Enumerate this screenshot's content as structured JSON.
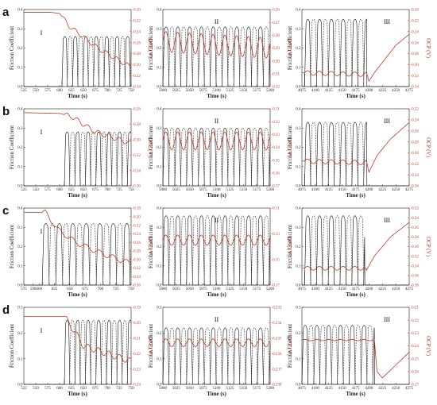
{
  "figure": {
    "rows": [
      "a",
      "b",
      "c",
      "d"
    ],
    "stage_labels": [
      "I",
      "II",
      "III"
    ],
    "left_axis_label": "Friction Coefficient",
    "right_axis_label": "OCP (V)",
    "x_axis_label": "Time (s)"
  },
  "chart_data": [
    {
      "row": "a",
      "stage": "I",
      "type": "line",
      "x_ticks": [
        "525",
        "550",
        "575",
        "600",
        "625",
        "650",
        "675",
        "700",
        "725",
        "750"
      ],
      "xlim": [
        525,
        750
      ],
      "y_ticks": [
        "0.0",
        "0.1",
        "0.2",
        "0.3",
        "0.4"
      ],
      "ylim": [
        0,
        0.4
      ],
      "y2_ticks": [
        "-0.20",
        "-0.22",
        "-0.24",
        "-0.26",
        "-0.28",
        "-0.30",
        "-0.32",
        "-0.34"
      ],
      "y2lim": [
        -0.34,
        -0.2
      ],
      "friction": {
        "start": 605,
        "period": 22,
        "peak": 0.26
      },
      "ocp": [
        [
          525,
          -0.205
        ],
        [
          580,
          -0.205
        ],
        [
          600,
          -0.207
        ],
        [
          620,
          -0.23
        ],
        [
          650,
          -0.25
        ],
        [
          680,
          -0.27
        ],
        [
          710,
          -0.285
        ],
        [
          750,
          -0.305
        ]
      ],
      "ocp_osc": 0.004
    },
    {
      "row": "a",
      "stage": "II",
      "type": "line",
      "x_ticks": [
        "5000",
        "5025",
        "5050",
        "5075",
        "5100",
        "5125",
        "5150",
        "5175",
        "5200"
      ],
      "xlim": [
        5000,
        5200
      ],
      "y_ticks": [
        "0.0",
        "0.1",
        "0.2",
        "0.3",
        "0.4"
      ],
      "ylim": [
        0,
        0.4
      ],
      "y2_ticks": [
        "-0.26",
        "-0.27",
        "-0.28",
        "-0.29",
        "-0.30",
        "-0.31",
        "-0.32"
      ],
      "y2lim": [
        -0.32,
        -0.26
      ],
      "friction": {
        "start": 5000,
        "period": 22,
        "peak": 0.31
      },
      "ocp": [
        [
          5000,
          -0.285
        ],
        [
          5200,
          -0.29
        ]
      ],
      "ocp_osc": 0.008
    },
    {
      "row": "a",
      "stage": "III",
      "type": "line",
      "x_ticks": [
        "4075",
        "4100",
        "4125",
        "4150",
        "4175",
        "4200",
        "4225",
        "4250",
        "4275"
      ],
      "xlim": [
        4075,
        4275
      ],
      "y_ticks": [
        "0.0",
        "0.1",
        "0.2",
        "0.3",
        "0.4"
      ],
      "ylim": [
        0,
        0.4
      ],
      "y2_ticks": [
        "-0.20",
        "-0.22",
        "-0.24",
        "-0.26",
        "-0.28",
        "-0.30",
        "-0.32",
        "-0.34"
      ],
      "y2lim": [
        -0.34,
        -0.2
      ],
      "friction": {
        "start": 4080,
        "period": 22,
        "peak": 0.35,
        "end": 4196
      },
      "ocp": [
        [
          4075,
          -0.315
        ],
        [
          4195,
          -0.318
        ],
        [
          4200,
          -0.33
        ],
        [
          4210,
          -0.315
        ],
        [
          4230,
          -0.29
        ],
        [
          4250,
          -0.265
        ],
        [
          4275,
          -0.245
        ]
      ],
      "ocp_osc": 0.004,
      "osc_end": 4198
    },
    {
      "row": "b",
      "stage": "I",
      "type": "line",
      "x_ticks": [
        "525",
        "550",
        "575",
        "600",
        "625",
        "650",
        "675",
        "700",
        "725",
        "750"
      ],
      "xlim": [
        525,
        750
      ],
      "y_ticks": [
        "0.0",
        "0.1",
        "0.2",
        "0.3",
        "0.4"
      ],
      "ylim": [
        0,
        0.4
      ],
      "y2_ticks": [
        "-0.26",
        "-0.28",
        "-0.30",
        "-0.32",
        "-0.34",
        "-0.36"
      ],
      "y2lim": [
        -0.36,
        -0.26
      ],
      "friction": {
        "start": 610,
        "period": 22,
        "peak": 0.28
      },
      "ocp": [
        [
          525,
          -0.265
        ],
        [
          600,
          -0.266
        ],
        [
          625,
          -0.27
        ],
        [
          650,
          -0.28
        ],
        [
          675,
          -0.29
        ],
        [
          700,
          -0.295
        ],
        [
          750,
          -0.305
        ]
      ],
      "ocp_osc": 0.003
    },
    {
      "row": "b",
      "stage": "II",
      "type": "line",
      "x_ticks": [
        "5000",
        "5025",
        "5050",
        "5075",
        "5100",
        "5125",
        "5150",
        "5175",
        "5200"
      ],
      "xlim": [
        5000,
        5200
      ],
      "y_ticks": [
        "0.0",
        "0.1",
        "0.2",
        "0.3",
        "0.4"
      ],
      "ylim": [
        0,
        0.4
      ],
      "y2_ticks": [
        "-0.31",
        "-0.32",
        "-0.33",
        "-0.34",
        "-0.35",
        "-0.36",
        "-0.37"
      ],
      "y2lim": [
        -0.37,
        -0.31
      ],
      "friction": {
        "start": 5000,
        "period": 22,
        "peak": 0.3
      },
      "ocp": [
        [
          5000,
          -0.335
        ],
        [
          5200,
          -0.335
        ]
      ],
      "ocp_osc": 0.007
    },
    {
      "row": "b",
      "stage": "III",
      "type": "line",
      "x_ticks": [
        "4075",
        "4100",
        "4125",
        "4150",
        "4175",
        "4200",
        "4225",
        "4250",
        "4275"
      ],
      "xlim": [
        4075,
        4275
      ],
      "y_ticks": [
        "0.0",
        "0.1",
        "0.2",
        "0.3",
        "0.4"
      ],
      "ylim": [
        0,
        0.4
      ],
      "y2_ticks": [
        "-0.22",
        "-0.24",
        "-0.26",
        "-0.28",
        "-0.30",
        "-0.32",
        "-0.34",
        "-0.36"
      ],
      "y2lim": [
        -0.36,
        -0.22
      ],
      "friction": {
        "start": 4080,
        "period": 22,
        "peak": 0.33,
        "end": 4196
      },
      "ocp": [
        [
          4075,
          -0.315
        ],
        [
          4195,
          -0.318
        ],
        [
          4200,
          -0.335
        ],
        [
          4215,
          -0.305
        ],
        [
          4240,
          -0.275
        ],
        [
          4275,
          -0.245
        ]
      ],
      "ocp_osc": 0.004,
      "osc_end": 4198
    },
    {
      "row": "c",
      "stage": "I",
      "type": "line",
      "x_ticks": [
        "575",
        "590",
        "600",
        "625",
        "650",
        "675",
        "700",
        "725",
        "750"
      ],
      "xlim": [
        575,
        750
      ],
      "y_ticks": [
        "0.0",
        "0.1",
        "0.2",
        "0.3",
        "0.4"
      ],
      "ylim": [
        0,
        0.4
      ],
      "y2_ticks": [
        "-0.18",
        "-0.20",
        "-0.22",
        "-0.24",
        "-0.26",
        "-0.28",
        "-0.30",
        "-0.32",
        "-0.34",
        "-0.36"
      ],
      "y2lim": [
        -0.36,
        -0.18
      ],
      "friction": {
        "start": 605,
        "period": 22,
        "peak": 0.32
      },
      "ocp": [
        [
          575,
          -0.19
        ],
        [
          610,
          -0.19
        ],
        [
          630,
          -0.23
        ],
        [
          660,
          -0.26
        ],
        [
          700,
          -0.285
        ],
        [
          750,
          -0.31
        ]
      ],
      "ocp_osc": 0.006
    },
    {
      "row": "c",
      "stage": "II",
      "type": "line",
      "x_ticks": [
        "5000",
        "5025",
        "5050",
        "5075",
        "5100",
        "5125",
        "5150",
        "5175",
        "5200"
      ],
      "xlim": [
        5000,
        5200
      ],
      "y_ticks": [
        "0.0",
        "0.1",
        "0.2",
        "0.3",
        "0.4"
      ],
      "ylim": [
        0,
        0.4
      ],
      "y2_ticks": [
        "-0.11",
        "-0.13",
        "-0.15",
        "-0.17"
      ],
      "y2lim": [
        -0.17,
        -0.11
      ],
      "friction": {
        "start": 5000,
        "period": 22,
        "peak": 0.36
      },
      "ocp": [
        [
          5000,
          -0.135
        ],
        [
          5200,
          -0.135
        ]
      ],
      "ocp_osc": 0.004
    },
    {
      "row": "c",
      "stage": "III",
      "type": "line",
      "x_ticks": [
        "4075",
        "4100",
        "4125",
        "4150",
        "4175",
        "4200",
        "4225",
        "4250",
        "4275"
      ],
      "xlim": [
        4075,
        4275
      ],
      "y_ticks": [
        "0.0",
        "0.1",
        "0.2",
        "0.3",
        "0.4"
      ],
      "ylim": [
        0,
        0.4
      ],
      "y2_ticks": [
        "-0.22",
        "-0.24",
        "-0.26",
        "-0.28",
        "-0.30",
        "-0.32",
        "-0.34",
        "-0.36",
        "-0.38"
      ],
      "y2lim": [
        -0.38,
        -0.22
      ],
      "friction": {
        "start": 4080,
        "period": 22,
        "peak": 0.36,
        "end": 4192
      },
      "ocp": [
        [
          4075,
          -0.345
        ],
        [
          4190,
          -0.345
        ],
        [
          4195,
          -0.35
        ],
        [
          4210,
          -0.32
        ],
        [
          4240,
          -0.28
        ],
        [
          4275,
          -0.25
        ]
      ],
      "ocp_osc": 0.004,
      "osc_end": 4195
    },
    {
      "row": "d",
      "stage": "I",
      "type": "line",
      "x_ticks": [
        "525",
        "550",
        "575",
        "600",
        "625",
        "650",
        "675",
        "700",
        "725",
        "750"
      ],
      "xlim": [
        525,
        750
      ],
      "y_ticks": [
        "0.0",
        "0.1",
        "0.2",
        "0.3"
      ],
      "ylim": [
        0,
        0.3
      ],
      "y2_ticks": [
        "-0.19",
        "-0.20",
        "-0.21",
        "-0.22",
        "-0.23",
        "-0.24"
      ],
      "y2lim": [
        -0.24,
        -0.19
      ],
      "friction": {
        "start": 610,
        "period": 22,
        "peak": 0.25
      },
      "ocp": [
        [
          525,
          -0.196
        ],
        [
          610,
          -0.196
        ],
        [
          630,
          -0.205
        ],
        [
          650,
          -0.215
        ],
        [
          700,
          -0.22
        ],
        [
          750,
          -0.225
        ]
      ],
      "ocp_osc": 0.002
    },
    {
      "row": "d",
      "stage": "II",
      "type": "line",
      "x_ticks": [
        "5000",
        "5025",
        "5050",
        "5075",
        "5100",
        "5125",
        "5150",
        "5175",
        "5200"
      ],
      "xlim": [
        5000,
        5200
      ],
      "y_ticks": [
        "0.0",
        "0.1",
        "0.2",
        "0.3"
      ],
      "ylim": [
        0,
        0.3
      ],
      "y2_ticks": [
        "-0.233",
        "-0.234",
        "-0.235",
        "-0.236",
        "-0.237",
        "-0.238"
      ],
      "y2lim": [
        -0.238,
        -0.233
      ],
      "friction": {
        "start": 5000,
        "period": 22,
        "peak": 0.22
      },
      "ocp": [
        [
          5000,
          -0.2353
        ],
        [
          5200,
          -0.2353
        ]
      ],
      "ocp_osc": 0.00025
    },
    {
      "row": "d",
      "stage": "III",
      "type": "line",
      "x_ticks": [
        "4075",
        "4100",
        "4125",
        "4150",
        "4175",
        "4200",
        "4225",
        "4250",
        "4275"
      ],
      "xlim": [
        4075,
        4275
      ],
      "y_ticks": [
        "0.0",
        "0.1",
        "0.2",
        "0.3"
      ],
      "ylim": [
        0,
        0.3
      ],
      "y2_ticks": [
        "-0.21",
        "-0.22",
        "-0.23",
        "-0.24",
        "-0.25",
        "-0.26",
        "-0.27"
      ],
      "y2lim": [
        -0.27,
        -0.21
      ],
      "friction": {
        "start": 4075,
        "period": 22,
        "peak": 0.23,
        "end": 4210
      },
      "ocp": [
        [
          4075,
          -0.2355
        ],
        [
          4210,
          -0.2355
        ],
        [
          4215,
          -0.26
        ],
        [
          4225,
          -0.265
        ],
        [
          4250,
          -0.255
        ],
        [
          4275,
          -0.245
        ]
      ],
      "ocp_osc": 0.0005,
      "osc_end": 4212
    }
  ]
}
